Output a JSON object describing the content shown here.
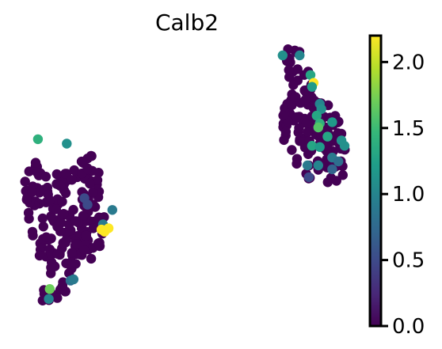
{
  "chart_data": {
    "type": "scatter",
    "title": "Calb2",
    "xlabel": "",
    "ylabel": "",
    "xlim": [
      0,
      100
    ],
    "ylim": [
      0,
      100
    ],
    "grid": false,
    "axes_visible": false,
    "colormap": "viridis",
    "colormap_stops": [
      "#440154",
      "#482878",
      "#3e4989",
      "#31688e",
      "#26828e",
      "#1f9e89",
      "#35b779",
      "#6ece58",
      "#b5de2b",
      "#fde725"
    ],
    "colorbar": {
      "range": [
        0.0,
        2.2
      ],
      "ticks": [
        0.0,
        0.5,
        1.0,
        1.5,
        2.0
      ],
      "tick_labels": [
        "0.0",
        "0.5",
        "1.0",
        "1.5",
        "2.0"
      ],
      "position": "right"
    },
    "expressed_points": [
      {
        "x": 1.0,
        "y": 66.5,
        "value": 1.4
      },
      {
        "x": 10.3,
        "y": 64.8,
        "value": 1.1
      },
      {
        "x": 16.0,
        "y": 44.0,
        "value": 0.5
      },
      {
        "x": 17.0,
        "y": 41.5,
        "value": 0.5
      },
      {
        "x": 25.0,
        "y": 39.5,
        "value": 0.9
      },
      {
        "x": 22.0,
        "y": 34.0,
        "value": 0.9
      },
      {
        "x": 21.5,
        "y": 32.0,
        "value": 2.2
      },
      {
        "x": 23.8,
        "y": 32.5,
        "value": 2.2
      },
      {
        "x": 22.5,
        "y": 31.2,
        "value": 2.2
      },
      {
        "x": 11.5,
        "y": 12.5,
        "value": 0.8
      },
      {
        "x": 12.5,
        "y": 13.0,
        "value": 0.9
      },
      {
        "x": 4.8,
        "y": 9.3,
        "value": 1.7
      },
      {
        "x": 4.5,
        "y": 5.5,
        "value": 1.0
      },
      {
        "x": 80.0,
        "y": 98.5,
        "value": 1.1
      },
      {
        "x": 85.5,
        "y": 98.5,
        "value": 1.0
      },
      {
        "x": 89.0,
        "y": 91.0,
        "value": 1.3
      },
      {
        "x": 90.0,
        "y": 88.0,
        "value": 2.2
      },
      {
        "x": 89.5,
        "y": 86.5,
        "value": 1.2
      },
      {
        "x": 92.0,
        "y": 80.0,
        "value": 1.0
      },
      {
        "x": 92.5,
        "y": 78.0,
        "value": 1.1
      },
      {
        "x": 91.0,
        "y": 75.5,
        "value": 1.3
      },
      {
        "x": 92.0,
        "y": 72.5,
        "value": 1.4
      },
      {
        "x": 96.0,
        "y": 73.0,
        "value": 1.2
      },
      {
        "x": 91.5,
        "y": 71.0,
        "value": 1.6
      },
      {
        "x": 94.5,
        "y": 67.5,
        "value": 1.3
      },
      {
        "x": 99.0,
        "y": 66.0,
        "value": 1.1
      },
      {
        "x": 100.0,
        "y": 64.0,
        "value": 1.1
      },
      {
        "x": 89.5,
        "y": 64.0,
        "value": 1.3
      },
      {
        "x": 92.0,
        "y": 63.5,
        "value": 1.2
      },
      {
        "x": 96.0,
        "y": 59.5,
        "value": 0.9
      },
      {
        "x": 98.0,
        "y": 58.0,
        "value": 0.8
      },
      {
        "x": 88.0,
        "y": 56.5,
        "value": 0.9
      },
      {
        "x": 91.5,
        "y": 56.5,
        "value": 1.0
      },
      {
        "x": 96.0,
        "y": 55.0,
        "value": 0.7
      },
      {
        "x": 88.5,
        "y": 52.0,
        "value": 0.5
      }
    ]
  }
}
